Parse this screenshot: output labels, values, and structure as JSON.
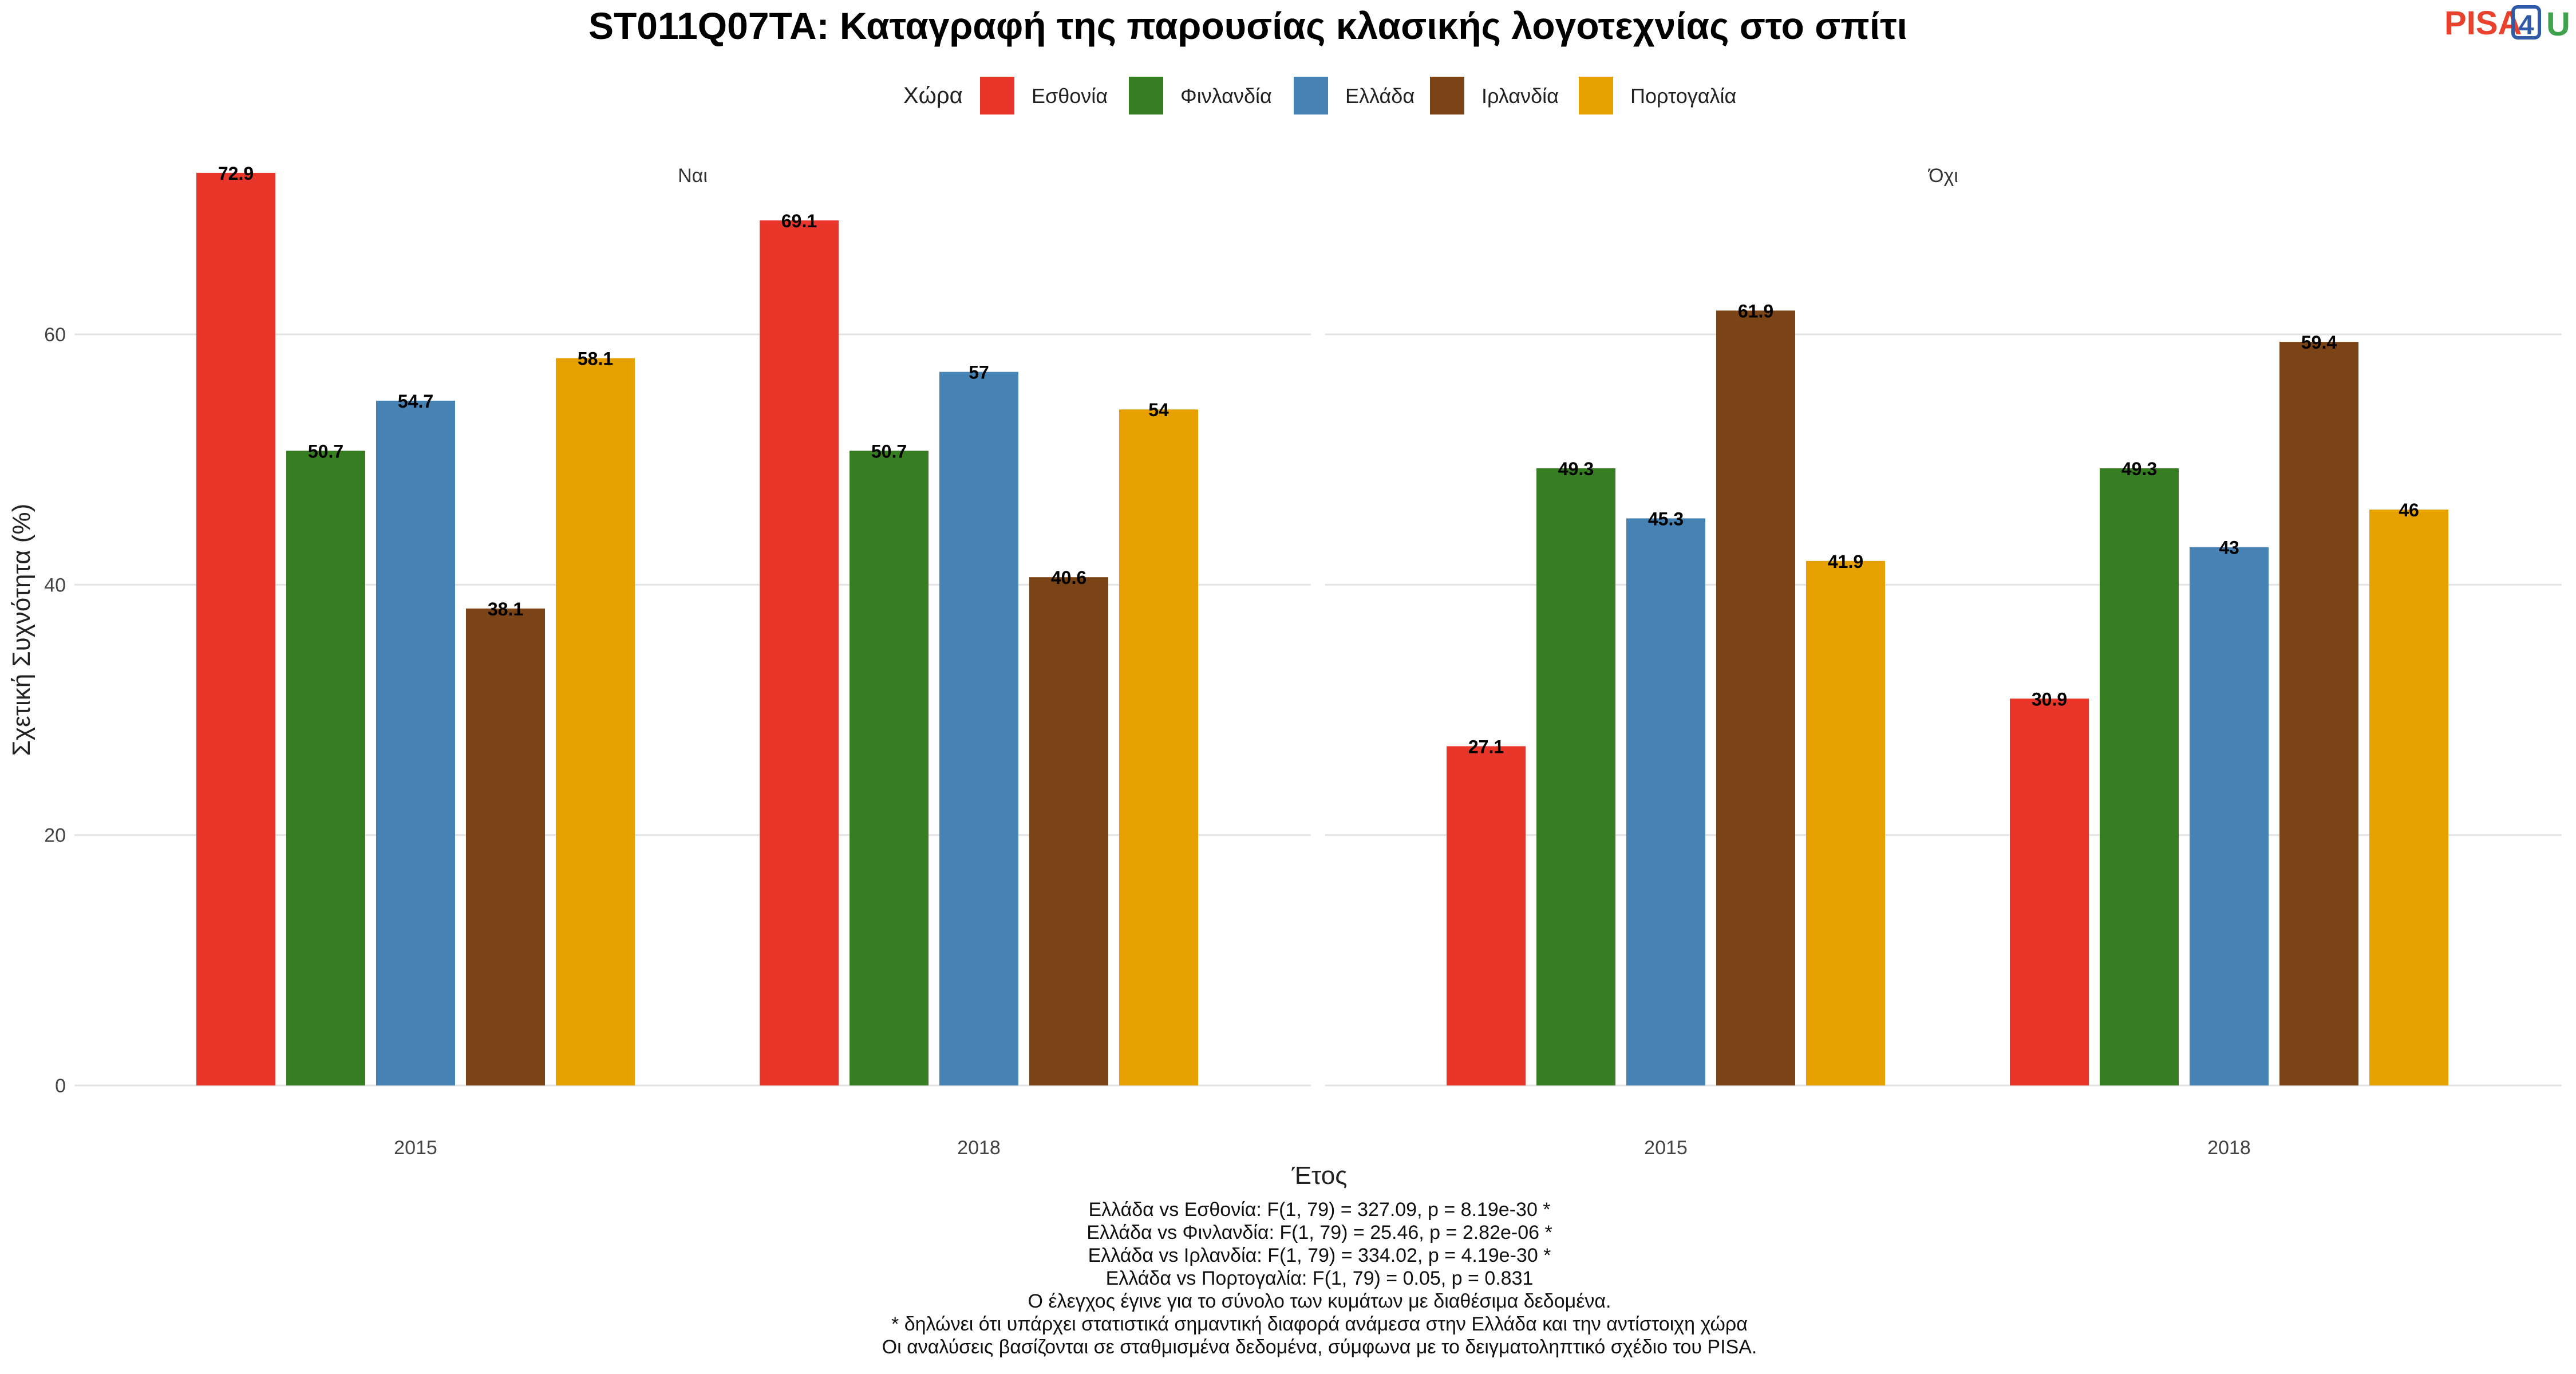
{
  "logo": {
    "part1": "PISA",
    "part2": "4",
    "part3": "U",
    "colors": {
      "pisa": "#e8412c",
      "four": "#2f5aa8",
      "u": "#3fa34d"
    }
  },
  "chart_data": {
    "type": "bar",
    "title": "ST011Q07TA: Καταγραφή της παρουσίας κλασικής λογοτεχνίας στο σπίτι",
    "xlabel": "Έτος",
    "ylabel": "Σχετική Συχνότητα (%)",
    "ylim": [
      0,
      75
    ],
    "yticks": [
      0,
      20,
      40,
      60
    ],
    "grid": true,
    "legend": {
      "title": "Χώρα",
      "position": "top"
    },
    "categories": [
      "2015",
      "2018"
    ],
    "series": [
      {
        "name": "Εσθονία",
        "color": "#e8362a"
      },
      {
        "name": "Φινλανδία",
        "color": "#377e22"
      },
      {
        "name": "Ελλάδα",
        "color": "#4682b4"
      },
      {
        "name": "Ιρλανδία",
        "color": "#7a4416"
      },
      {
        "name": "Πορτογαλία",
        "color": "#e6a100"
      }
    ],
    "facets": [
      {
        "label": "Ναι",
        "values": [
          [
            72.9,
            50.7,
            54.7,
            38.1,
            58.1
          ],
          [
            69.1,
            50.7,
            57,
            40.6,
            54
          ]
        ]
      },
      {
        "label": "Όχι",
        "values": [
          [
            27.1,
            49.3,
            45.3,
            61.9,
            41.9
          ],
          [
            30.9,
            49.3,
            43,
            59.4,
            46
          ]
        ]
      }
    ],
    "notes": [
      "Ελλάδα vs Εσθονία: F(1, 79) = 327.09, p = 8.19e-30 *",
      "Ελλάδα vs Φινλανδία: F(1, 79) = 25.46, p = 2.82e-06 *",
      "Ελλάδα vs Ιρλανδία: F(1, 79) = 334.02, p = 4.19e-30 *",
      "Ελλάδα vs Πορτογαλία: F(1, 79) = 0.05, p = 0.831",
      "Ο έλεγχος έγινε για το σύνολο των κυμάτων με διαθέσιμα δεδομένα.",
      "* δηλώνει ότι υπάρχει στατιστικά σημαντική διαφορά ανάμεσα στην Ελλάδα και την αντίστοιχη χώρα",
      "Οι αναλύσεις βασίζονται σε σταθμισμένα δεδομένα, σύμφωνα με το δειγματοληπτικό σχέδιο του PISA."
    ]
  }
}
